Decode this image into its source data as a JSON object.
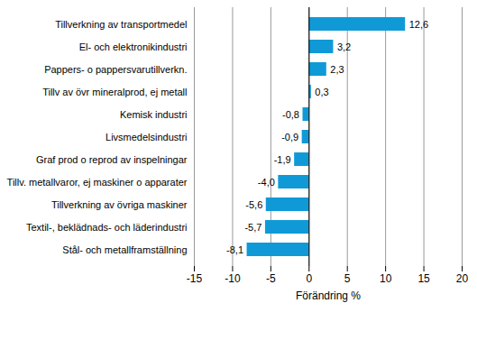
{
  "chart_data": {
    "type": "bar",
    "orientation": "horizontal",
    "categories": [
      "Tillverkning av transportmedel",
      "El- och elektronikindustri",
      "Pappers- o pappersvarutillverkn.",
      "Tillv av övr mineralprod, ej metall",
      "Kemisk industri",
      "Livsmedelsindustri",
      "Graf prod o reprod av inspelningar",
      "Tillv. metallvaror, ej maskiner o apparater",
      "Tillverkning av övriga maskiner",
      "Textil-, beklädnads- och läderindustri",
      "Stål- och metallframställning"
    ],
    "values": [
      12.6,
      3.2,
      2.3,
      0.3,
      -0.8,
      -0.9,
      -1.9,
      -4.0,
      -5.6,
      -5.7,
      -8.1
    ],
    "value_labels": [
      "12,6",
      "3,2",
      "2,3",
      "0,3",
      "-0,8",
      "-0,9",
      "-1,9",
      "-4,0",
      "-5,6",
      "-5,7",
      "-8,1"
    ],
    "data_labels": true,
    "color": "#0f9ad7",
    "x_label": "Förändring %",
    "xlim": [
      -15,
      20
    ],
    "xticks": [
      -15,
      -10,
      -5,
      0,
      5,
      10,
      15,
      20
    ],
    "grid": true
  }
}
